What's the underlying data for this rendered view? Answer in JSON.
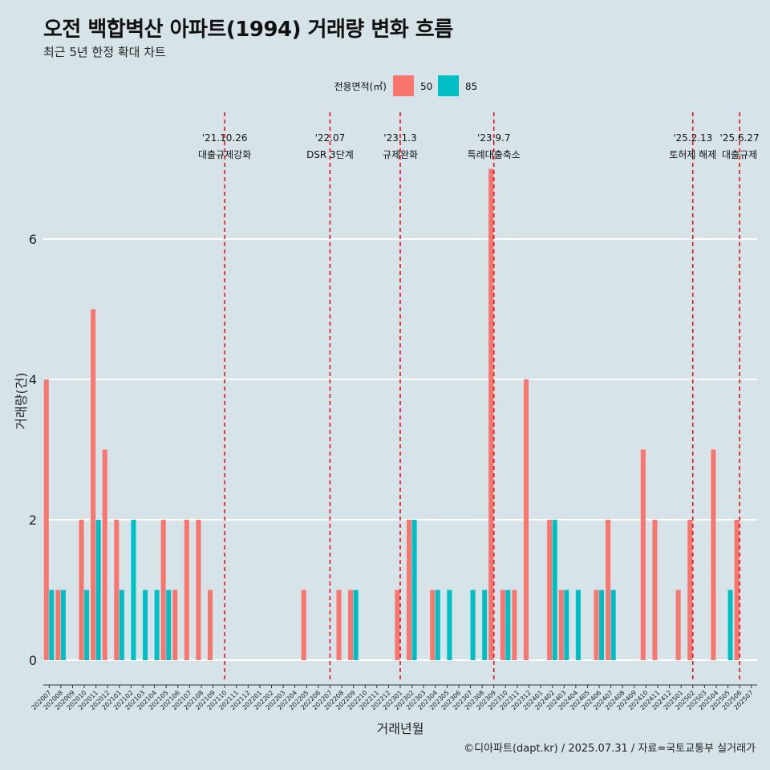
{
  "header": {
    "title": "오전 백합벽산 아파트(1994) 거래량 변화 흐름",
    "subtitle": "최근 5년 한정 확대 차트"
  },
  "caption": "©디아파트(dapt.kr) / 2025.07.31 / 자료=국토교통부 실거래가",
  "chart_data": {
    "type": "bar",
    "xlabel": "거래년월",
    "ylabel": "거래량(건)",
    "ylim": [
      0,
      7
    ],
    "yticks": [
      0,
      2,
      4,
      6
    ],
    "grid": true,
    "legend": {
      "title": "전용면적(㎡)",
      "position": "top",
      "entries": [
        {
          "name": "50",
          "color": "#F8766D"
        },
        {
          "name": "85",
          "color": "#00BFC4"
        }
      ]
    },
    "categories": [
      "202007",
      "202008",
      "202009",
      "202010",
      "202011",
      "202012",
      "202101",
      "202102",
      "202103",
      "202104",
      "202105",
      "202106",
      "202107",
      "202108",
      "202109",
      "202110",
      "202111",
      "202112",
      "202201",
      "202202",
      "202203",
      "202204",
      "202205",
      "202206",
      "202207",
      "202208",
      "202209",
      "202210",
      "202211",
      "202212",
      "202301",
      "202302",
      "202303",
      "202304",
      "202305",
      "202306",
      "202307",
      "202308",
      "202309",
      "202310",
      "202311",
      "202312",
      "202401",
      "202402",
      "202403",
      "202404",
      "202405",
      "202406",
      "202407",
      "202408",
      "202409",
      "202410",
      "202411",
      "202412",
      "202501",
      "202502",
      "202503",
      "202504",
      "202505",
      "202506",
      "202507"
    ],
    "series": [
      {
        "name": "50",
        "color": "#F8766D",
        "values": [
          4,
          1,
          0,
          2,
          5,
          3,
          2,
          0,
          0,
          0,
          2,
          1,
          2,
          2,
          1,
          0,
          0,
          0,
          0,
          0,
          0,
          0,
          1,
          0,
          0,
          1,
          1,
          0,
          0,
          0,
          1,
          2,
          0,
          1,
          0,
          0,
          0,
          0,
          7,
          1,
          1,
          4,
          0,
          2,
          1,
          0,
          0,
          1,
          2,
          0,
          0,
          3,
          2,
          0,
          1,
          2,
          0,
          3,
          0,
          2,
          0
        ]
      },
      {
        "name": "85",
        "color": "#00BFC4",
        "values": [
          1,
          1,
          0,
          1,
          2,
          0,
          1,
          2,
          1,
          1,
          1,
          0,
          0,
          0,
          0,
          0,
          0,
          0,
          0,
          0,
          0,
          0,
          0,
          0,
          0,
          0,
          1,
          0,
          0,
          0,
          0,
          2,
          0,
          1,
          1,
          0,
          1,
          1,
          0,
          1,
          0,
          0,
          0,
          2,
          1,
          1,
          0,
          1,
          1,
          0,
          0,
          0,
          0,
          0,
          0,
          0,
          0,
          0,
          1,
          0,
          0
        ]
      }
    ],
    "events": [
      {
        "date": "'21.10.26",
        "label": "대출규제강화",
        "at": "202110"
      },
      {
        "date": "'22.07",
        "label": "DSR 3단계",
        "at": "202207"
      },
      {
        "date": "'23.1.3",
        "label": "규제완화",
        "at": "202301"
      },
      {
        "date": "'23.9.7",
        "label": "특례대출축소",
        "at": "202309"
      },
      {
        "date": "'25.2.13",
        "label": "토허제 해제",
        "at": "202502"
      },
      {
        "date": "'25.6.27",
        "label": "대출규제",
        "at": "202506"
      }
    ]
  }
}
